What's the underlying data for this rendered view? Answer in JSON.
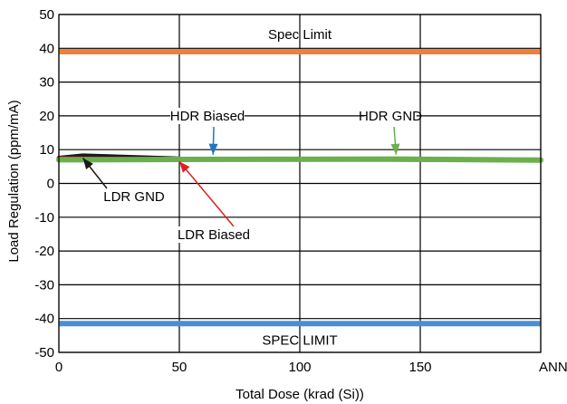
{
  "chart_data": {
    "type": "line",
    "xlabel": "Total Dose (krad (Si))",
    "ylabel": "Load Regulation (ppm/mA)",
    "xlim": [
      0,
      200
    ],
    "ylim": [
      -50,
      50
    ],
    "x_ticks": [
      0,
      50,
      100,
      150,
      200
    ],
    "x_tick_labels": [
      "0",
      "50",
      "100",
      "150",
      "ANNEAL"
    ],
    "y_ticks": [
      50,
      40,
      30,
      20,
      10,
      0,
      -10,
      -20,
      -30,
      -40,
      -50
    ],
    "grid": true,
    "limits": [
      {
        "label": "Spec Limit",
        "value": 39,
        "color": "#f07f3c"
      },
      {
        "label": "SPEC LIMIT",
        "value": -41.5,
        "color": "#4a8fd4"
      }
    ],
    "series": [
      {
        "name": "LDR GND",
        "color": "#1a1a1a",
        "x": [
          0,
          10,
          50
        ],
        "y": [
          7.5,
          8.2,
          7.3
        ]
      },
      {
        "name": "LDR Biased",
        "color": "#e02020",
        "x": [
          0,
          50
        ],
        "y": [
          7.6,
          7.3
        ]
      },
      {
        "name": "HDR Biased",
        "color": "#1f77c4",
        "x": [
          0,
          50,
          200
        ],
        "y": [
          7.0,
          7.1,
          6.8
        ]
      },
      {
        "name": "HDR GND",
        "color": "#6ab04c",
        "x": [
          0,
          50,
          140,
          200
        ],
        "y": [
          7.0,
          7.1,
          7.2,
          6.9
        ]
      }
    ],
    "annotations": [
      {
        "text": "HDR Biased",
        "color": "#1f77c4",
        "target": [
          64,
          8.5
        ]
      },
      {
        "text": "HDR GND",
        "color": "#6ab04c",
        "target": [
          140,
          8.5
        ]
      },
      {
        "text": "LDR GND",
        "color": "#1a1a1a",
        "target": [
          10,
          7.5
        ]
      },
      {
        "text": "LDR Biased",
        "color": "#e02020",
        "target": [
          50,
          6.5
        ]
      }
    ]
  }
}
